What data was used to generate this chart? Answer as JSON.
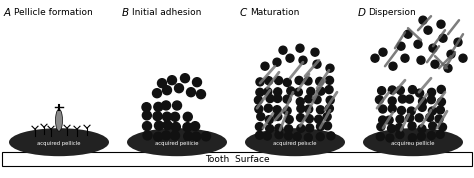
{
  "stages": [
    {
      "label": "A",
      "title": "Pellicle formation"
    },
    {
      "label": "B",
      "title": "Initial adhesion"
    },
    {
      "label": "C",
      "title": "Maturation"
    },
    {
      "label": "D",
      "title": "Dispersion"
    }
  ],
  "tooth_surface_label": "Tooth  Surface",
  "background_color": "#ffffff",
  "pellicle_color": "#222222",
  "bacteria_color": "#111111",
  "rod_color": "#555555",
  "text_color": "#000000",
  "fig_width": 4.74,
  "fig_height": 1.78,
  "dpi": 100
}
